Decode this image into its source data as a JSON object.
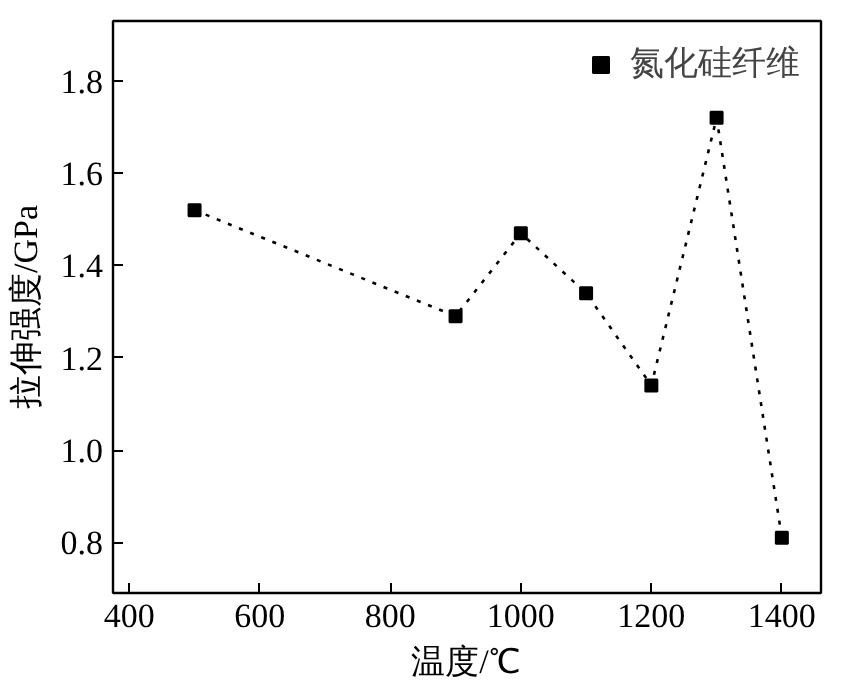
{
  "chart_data": {
    "type": "line",
    "xlabel": "温度/℃",
    "ylabel": "拉伸强度/GPa",
    "x": [
      500,
      900,
      1000,
      1100,
      1200,
      1300,
      1400
    ],
    "series": [
      {
        "name": "氮化硅纤维",
        "color": "#000000",
        "values": [
          1.52,
          1.29,
          1.47,
          1.34,
          1.14,
          1.72,
          0.81
        ]
      }
    ],
    "xlim": [
      375,
      1460
    ],
    "ylim": [
      0.69,
      1.93
    ],
    "xticks": [
      400,
      600,
      800,
      1000,
      1200,
      1400
    ],
    "yticks": [
      0.8,
      {
        "value": 1,
        "label": "1.0"
      },
      1.2,
      1.4,
      1.6,
      1.8
    ],
    "marker": "square",
    "line_style": "dotted",
    "legend": "top right",
    "grid": false
  }
}
